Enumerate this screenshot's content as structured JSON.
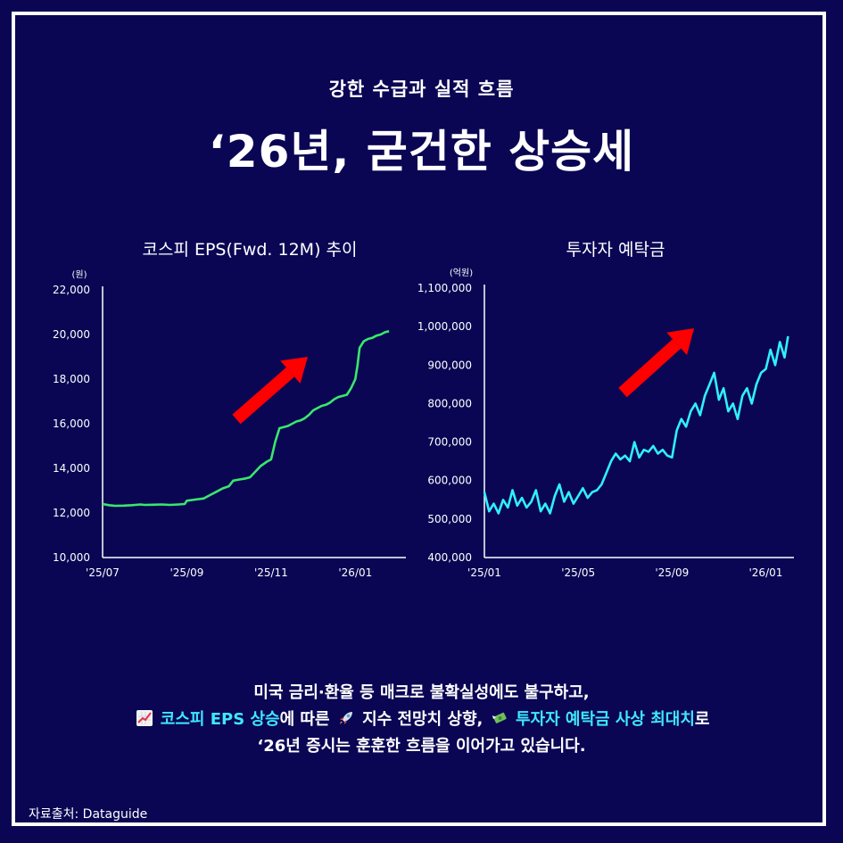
{
  "header": {
    "subtitle": "강한 수급과 실적 흐름",
    "title": "‘26년, 굳건한 상승세"
  },
  "left_chart_title": "코스피 EPS(Fwd. 12M) 추이",
  "right_chart_title": "투자자 예탁금",
  "chart_data": [
    {
      "type": "line",
      "title": "코스피 EPS(Fwd. 12M) 추이",
      "unit": "(원)",
      "ylim": [
        10000,
        22000
      ],
      "yticks": [
        10000,
        12000,
        14000,
        16000,
        18000,
        20000,
        22000
      ],
      "ytick_labels": [
        "10,000",
        "12,000",
        "14,000",
        "16,000",
        "18,000",
        "20,000",
        "22,000"
      ],
      "xtick_labels": [
        "'25/07",
        "'25/09",
        "'25/11",
        "'26/01"
      ],
      "xticks": [
        0,
        2,
        4,
        6
      ],
      "xlim": [
        0,
        7.2
      ],
      "color": "#39e86a",
      "trend_arrow_color": "#ff0000",
      "series": [
        {
          "x": [
            0,
            0.15,
            0.3,
            0.5,
            0.7,
            0.9,
            1.0,
            1.2,
            1.4,
            1.6,
            1.8,
            1.95,
            2.0,
            2.2,
            2.4,
            2.55,
            2.7,
            2.85,
            3.0,
            3.1,
            3.25,
            3.4,
            3.5,
            3.65,
            3.75,
            3.9,
            4.0,
            4.1,
            4.2,
            4.3,
            4.4,
            4.5,
            4.6,
            4.7,
            4.8,
            4.9,
            5.0,
            5.1,
            5.2,
            5.3,
            5.4,
            5.5,
            5.6,
            5.7,
            5.8,
            5.9,
            6.0,
            6.05,
            6.1,
            6.2,
            6.3,
            6.4,
            6.5,
            6.6,
            6.7,
            6.8
          ],
          "values": [
            12400,
            12350,
            12320,
            12330,
            12350,
            12380,
            12360,
            12370,
            12380,
            12360,
            12380,
            12400,
            12550,
            12600,
            12650,
            12800,
            12950,
            13100,
            13200,
            13450,
            13500,
            13550,
            13600,
            13900,
            14100,
            14300,
            14400,
            15200,
            15800,
            15850,
            15900,
            16000,
            16100,
            16150,
            16250,
            16400,
            16600,
            16700,
            16800,
            16850,
            16950,
            17100,
            17200,
            17250,
            17300,
            17600,
            18000,
            18600,
            19400,
            19700,
            19800,
            19850,
            19950,
            20000,
            20100,
            20150
          ]
        }
      ]
    },
    {
      "type": "line",
      "title": "투자자 예탁금",
      "unit": "(억원)",
      "ylim": [
        400000,
        1100000
      ],
      "yticks": [
        400000,
        500000,
        600000,
        700000,
        800000,
        900000,
        1000000,
        1100000
      ],
      "ytick_labels": [
        "400,000",
        "500,000",
        "600,000",
        "700,000",
        "800,000",
        "900,000",
        "1,000,000",
        "1,100,000"
      ],
      "xtick_labels": [
        "'25/01",
        "'25/05",
        "'25/09",
        "'26/01"
      ],
      "xticks": [
        0,
        4,
        8,
        12
      ],
      "xlim": [
        0,
        13.2
      ],
      "color": "#2ff0ff",
      "trend_arrow_color": "#ff0000",
      "series": [
        {
          "x": [
            0,
            0.2,
            0.4,
            0.6,
            0.8,
            1.0,
            1.2,
            1.4,
            1.6,
            1.8,
            2.0,
            2.2,
            2.4,
            2.6,
            2.8,
            3.0,
            3.2,
            3.4,
            3.6,
            3.8,
            4.0,
            4.2,
            4.4,
            4.6,
            4.8,
            5.0,
            5.2,
            5.4,
            5.6,
            5.8,
            6.0,
            6.2,
            6.4,
            6.6,
            6.8,
            7.0,
            7.2,
            7.4,
            7.6,
            7.8,
            8.0,
            8.2,
            8.4,
            8.6,
            8.8,
            9.0,
            9.2,
            9.4,
            9.6,
            9.8,
            10.0,
            10.2,
            10.4,
            10.6,
            10.8,
            11.0,
            11.2,
            11.4,
            11.6,
            11.8,
            12.0,
            12.2,
            12.4,
            12.6,
            12.8,
            12.95
          ],
          "values": [
            570000,
            520000,
            540000,
            515000,
            550000,
            530000,
            575000,
            535000,
            555000,
            530000,
            545000,
            575000,
            520000,
            540000,
            515000,
            560000,
            590000,
            545000,
            570000,
            540000,
            560000,
            580000,
            555000,
            570000,
            575000,
            590000,
            620000,
            650000,
            670000,
            655000,
            665000,
            650000,
            700000,
            660000,
            680000,
            675000,
            690000,
            670000,
            680000,
            665000,
            660000,
            730000,
            760000,
            740000,
            780000,
            800000,
            770000,
            820000,
            850000,
            880000,
            810000,
            840000,
            780000,
            800000,
            760000,
            820000,
            840000,
            800000,
            850000,
            880000,
            890000,
            940000,
            900000,
            960000,
            920000,
            975000
          ]
        }
      ]
    }
  ],
  "body": {
    "line1": "미국 금리·환율 등 매크로 불확실성에도 불구하고,",
    "line2_icon1": "chart-increasing-icon",
    "line2_hl1": "코스피 EPS 상승",
    "line2_mid1": "에 따른",
    "line2_icon2": "rocket-icon",
    "line2_mid2": "지수 전망치 상향,",
    "line2_icon3": "money-wings-icon",
    "line2_hl2": "투자자 예탁금 사상 최대치",
    "line2_end": "로",
    "line3": "‘26년 증시는 훈훈한 흐름을 이어가고 있습니다."
  },
  "source": "자료출처: Dataguide",
  "colors": {
    "background": "#0a0654",
    "frame": "#ffffff",
    "highlight": "#3ee8ff",
    "eps_line": "#39e86a",
    "deposit_line": "#2ff0ff",
    "arrow": "#ff0000"
  }
}
